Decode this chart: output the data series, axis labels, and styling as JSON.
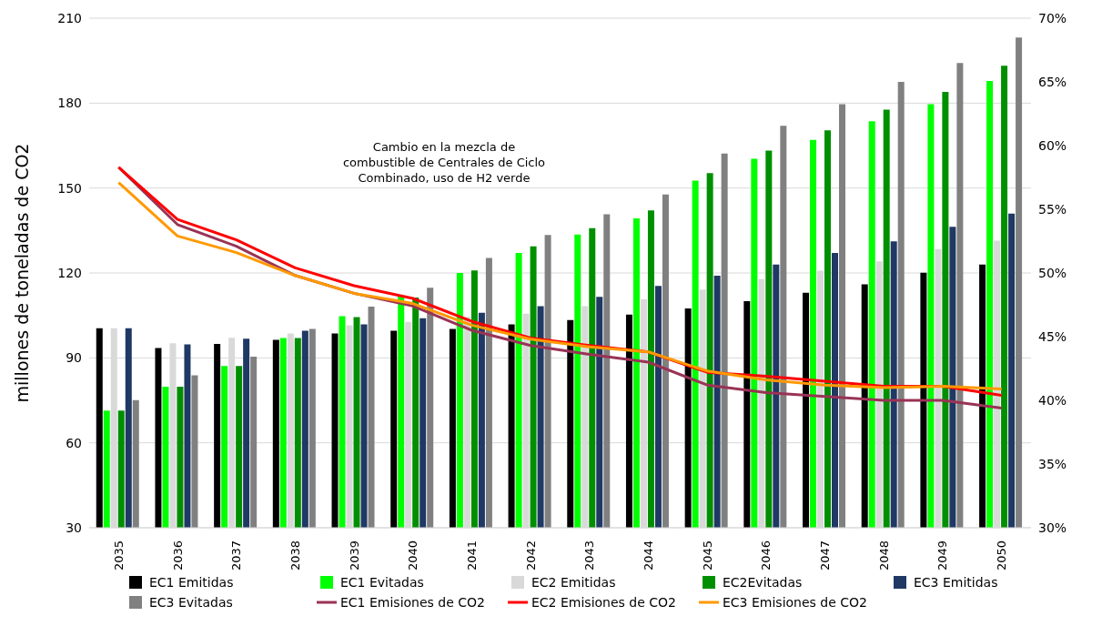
{
  "chart_data": {
    "type": "bar",
    "ylabel": "millones de toneladas de CO2",
    "annotations": [
      "Cambio en la mezcla de combustible de Centrales de Ciclo Combinado, uso de H2 verde"
    ],
    "categories": [
      "2035",
      "2036",
      "2037",
      "2038",
      "2039",
      "2040",
      "2041",
      "2042",
      "2043",
      "2044",
      "2045",
      "2046",
      "2047",
      "2048",
      "2049",
      "2050"
    ],
    "series": [
      {
        "name": "EC1 Emitidas",
        "color": "#000000",
        "values": [
          100.5,
          93.5,
          94.9,
          96.4,
          98.6,
          99.6,
          100.2,
          101.8,
          103.4,
          105.3,
          107.5,
          110,
          113,
          116,
          120.1,
          123
        ]
      },
      {
        "name": "EC1 Evitadas",
        "color": "#00ff00",
        "values": [
          71.4,
          79.8,
          87.1,
          97,
          104.7,
          112,
          120,
          127.1,
          133.6,
          139.3,
          152.6,
          160.3,
          167,
          173.6,
          179.6,
          187.8
        ]
      },
      {
        "name": "EC2 Emitidas",
        "color": "#d9d9d9",
        "values": [
          100.5,
          95.2,
          97.1,
          98.6,
          101.5,
          102.7,
          104.5,
          105.6,
          108.3,
          110.7,
          114.1,
          117.8,
          120.8,
          124.1,
          128.4,
          131.4
        ]
      },
      {
        "name": "EC2Evitadas",
        "color": "#008f00",
        "values": [
          71.4,
          79.8,
          87.1,
          97,
          104.4,
          111.3,
          120.9,
          129.4,
          135.8,
          142.1,
          155.3,
          163.2,
          170.4,
          177.7,
          184,
          193.2
        ]
      },
      {
        "name": "EC3 Emitidas",
        "color": "#1f3864",
        "values": [
          100.5,
          94.8,
          96.8,
          99.6,
          101.8,
          104,
          105.9,
          108.3,
          111.6,
          115.4,
          119,
          123,
          127.1,
          131.2,
          136.3,
          141
        ]
      },
      {
        "name": "EC3 Evitadas",
        "color": "#808080",
        "values": [
          75.1,
          83.8,
          90.4,
          100.2,
          108.1,
          114.8,
          125.3,
          133.4,
          140.7,
          147.7,
          162.2,
          172,
          179.6,
          187.5,
          194.2,
          203.2
        ]
      },
      {
        "name": "EC1 Emisiones de CO2",
        "type": "line",
        "axis": "y2",
        "color": "#993355",
        "values": [
          58.3,
          53.8,
          52.1,
          49.8,
          48.4,
          47.4,
          45.5,
          44.3,
          43.6,
          43,
          41.2,
          40.6,
          40.3,
          40,
          40,
          39.4
        ]
      },
      {
        "name": "EC2 Emisiones de CO2",
        "type": "line",
        "axis": "y2",
        "color": "#ff0000",
        "values": [
          58.3,
          54.2,
          52.6,
          50.4,
          49,
          48,
          46.2,
          44.9,
          44.3,
          43.8,
          42.2,
          41.9,
          41.5,
          41.1,
          41.1,
          40.4
        ]
      },
      {
        "name": "EC3 Emisiones de CO2",
        "type": "line",
        "axis": "y2",
        "color": "#ff9900",
        "values": [
          57.1,
          52.9,
          51.6,
          49.8,
          48.4,
          47.6,
          45.9,
          44.8,
          44.2,
          43.8,
          42.3,
          41.6,
          41.2,
          41,
          41.1,
          40.9
        ]
      }
    ],
    "ylim": [
      30,
      210
    ],
    "yticks": [
      30,
      60,
      90,
      120,
      150,
      180,
      210
    ],
    "y2lim": [
      30,
      70
    ],
    "y2ticks": [
      {
        "value": 30,
        "label": "30%"
      },
      {
        "value": 35,
        "label": "35%"
      },
      {
        "value": 40,
        "label": "40%"
      },
      {
        "value": 45,
        "label": "45%"
      },
      {
        "value": 50,
        "label": "50%"
      },
      {
        "value": 55,
        "label": "55%"
      },
      {
        "value": 60,
        "label": "60%"
      },
      {
        "value": 65,
        "label": "65%"
      },
      {
        "value": 70,
        "label": "70%"
      }
    ],
    "grid": "y",
    "legend": "bottom",
    "line_style": "solid"
  }
}
